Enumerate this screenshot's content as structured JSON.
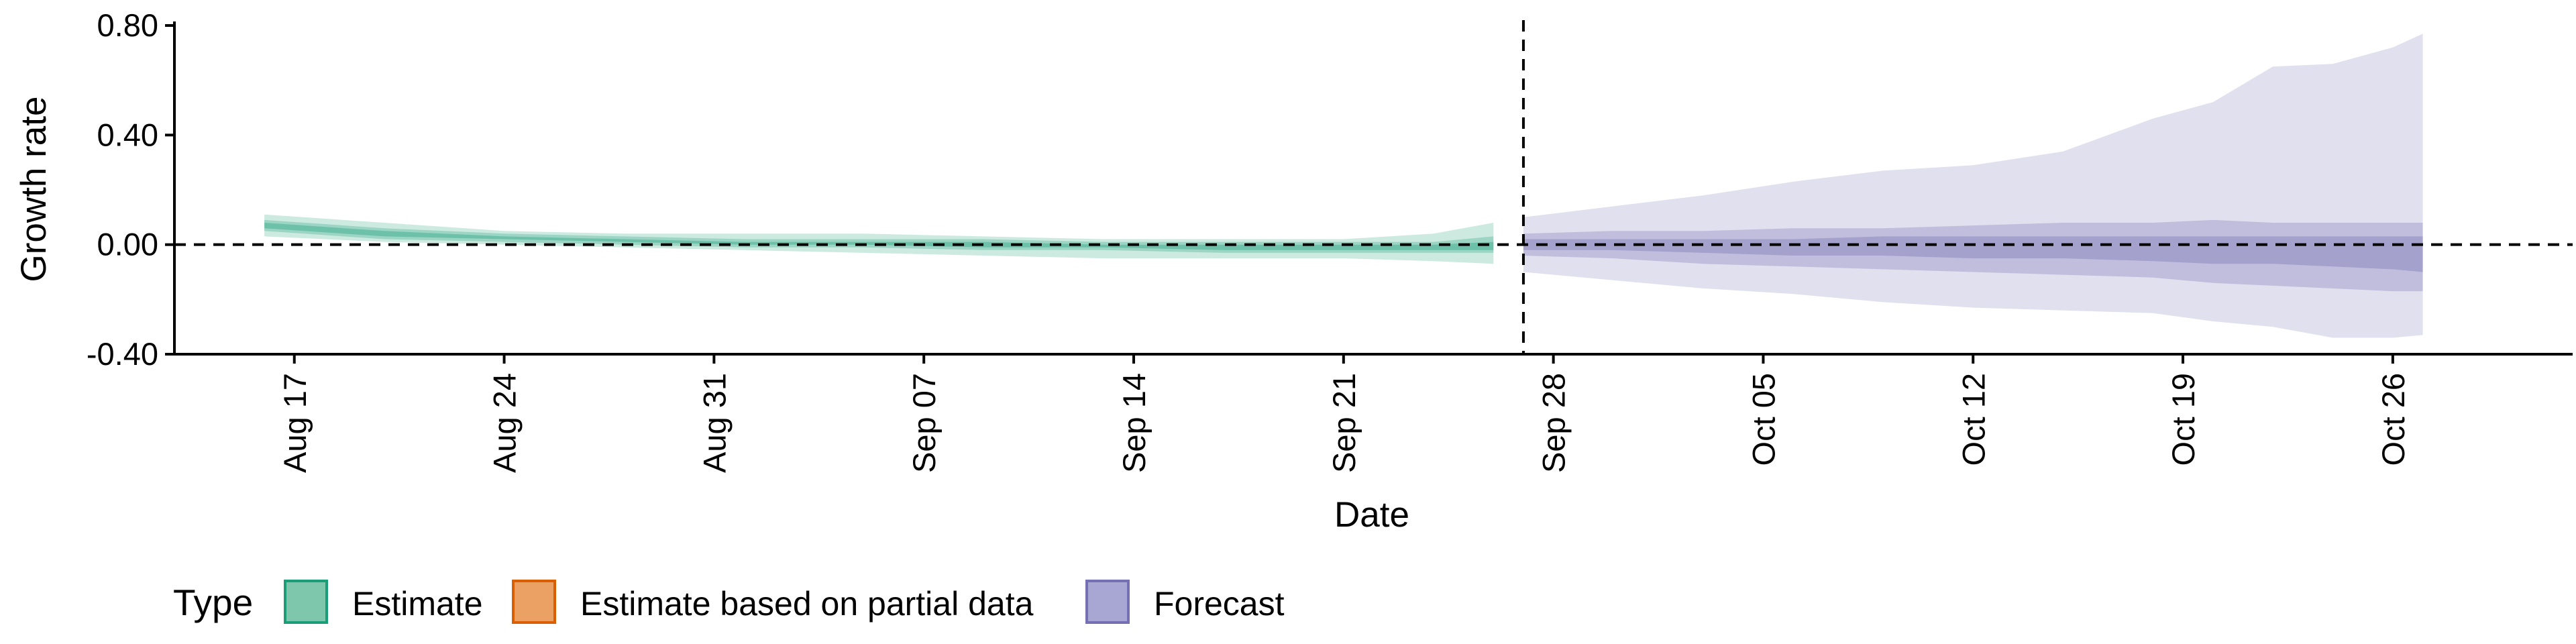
{
  "chart_data": {
    "type": "area",
    "title": "",
    "xlabel": "Date",
    "ylabel": "Growth rate",
    "ylim": [
      -0.4,
      0.8
    ],
    "xlim": [
      "2020-08-13",
      "2020-11-01"
    ],
    "y_ticks": [
      "-0.40",
      "0.00",
      "0.40",
      "0.80"
    ],
    "y_tick_values": [
      -0.4,
      0.0,
      0.4,
      0.8
    ],
    "x_ticks": [
      "Aug 17",
      "Aug 24",
      "Aug 31",
      "Sep 07",
      "Sep 14",
      "Sep 21",
      "Sep 28",
      "Oct 05",
      "Oct 12",
      "Oct 19",
      "Oct 26"
    ],
    "x_tick_dates": [
      "2020-08-17",
      "2020-08-24",
      "2020-08-31",
      "2020-09-07",
      "2020-09-14",
      "2020-09-21",
      "2020-09-28",
      "2020-10-05",
      "2020-10-12",
      "2020-10-19",
      "2020-10-26"
    ],
    "hline_y": 0.0,
    "vline_date": "2020-09-27",
    "grid": false,
    "legend": {
      "title": "Type",
      "position": "bottom-left",
      "entries": [
        {
          "label": "Estimate",
          "fill": "#7fc7ac",
          "border": "#1b9e77"
        },
        {
          "label": "Estimate based on partial data",
          "fill": "#eba064",
          "border": "#d95f02"
        },
        {
          "label": "Forecast",
          "fill": "#a8a6d3",
          "border": "#7570b3"
        }
      ]
    },
    "series": [
      {
        "name": "Estimate",
        "color": "#1b9e77",
        "x": [
          "2020-08-16",
          "2020-08-20",
          "2020-08-24",
          "2020-08-28",
          "2020-09-01",
          "2020-09-05",
          "2020-09-09",
          "2020-09-13",
          "2020-09-17",
          "2020-09-21",
          "2020-09-24",
          "2020-09-26"
        ],
        "bands": [
          {
            "level": "90%",
            "opacity": 0.22,
            "lower": [
              0.03,
              0.01,
              0.0,
              -0.01,
              -0.02,
              -0.03,
              -0.04,
              -0.05,
              -0.05,
              -0.05,
              -0.06,
              -0.07
            ],
            "upper": [
              0.11,
              0.08,
              0.05,
              0.04,
              0.04,
              0.04,
              0.03,
              0.02,
              0.02,
              0.02,
              0.04,
              0.08
            ]
          },
          {
            "level": "50%",
            "opacity": 0.28,
            "lower": [
              0.05,
              0.02,
              0.01,
              0.0,
              -0.01,
              -0.01,
              -0.02,
              -0.02,
              -0.03,
              -0.03,
              -0.03,
              -0.03
            ],
            "upper": [
              0.09,
              0.06,
              0.04,
              0.03,
              0.02,
              0.02,
              0.02,
              0.01,
              0.01,
              0.01,
              0.01,
              0.03
            ]
          },
          {
            "level": "20%",
            "opacity": 0.35,
            "lower": [
              0.06,
              0.03,
              0.02,
              0.01,
              0.0,
              0.0,
              -0.01,
              -0.01,
              -0.02,
              -0.02,
              -0.02,
              -0.02
            ],
            "upper": [
              0.08,
              0.05,
              0.03,
              0.02,
              0.01,
              0.01,
              0.01,
              0.0,
              0.0,
              0.0,
              0.0,
              0.01
            ]
          }
        ]
      },
      {
        "name": "Forecast",
        "color": "#7570b3",
        "x": [
          "2020-09-27",
          "2020-09-30",
          "2020-10-03",
          "2020-10-06",
          "2020-10-09",
          "2020-10-12",
          "2020-10-15",
          "2020-10-18",
          "2020-10-20",
          "2020-10-22",
          "2020-10-24",
          "2020-10-26",
          "2020-10-27"
        ],
        "bands": [
          {
            "level": "90%",
            "opacity": 0.22,
            "lower": [
              -0.1,
              -0.13,
              -0.16,
              -0.18,
              -0.21,
              -0.23,
              -0.24,
              -0.25,
              -0.28,
              -0.3,
              -0.34,
              -0.34,
              -0.33
            ],
            "upper": [
              0.1,
              0.14,
              0.18,
              0.23,
              0.27,
              0.29,
              0.34,
              0.46,
              0.52,
              0.65,
              0.66,
              0.72,
              0.77
            ]
          },
          {
            "level": "50%",
            "opacity": 0.3,
            "lower": [
              -0.04,
              -0.05,
              -0.07,
              -0.08,
              -0.09,
              -0.1,
              -0.11,
              -0.12,
              -0.14,
              -0.15,
              -0.16,
              -0.17,
              -0.17
            ],
            "upper": [
              0.04,
              0.05,
              0.05,
              0.06,
              0.06,
              0.07,
              0.08,
              0.08,
              0.09,
              0.08,
              0.08,
              0.08,
              0.08
            ]
          },
          {
            "level": "20%",
            "opacity": 0.38,
            "lower": [
              -0.02,
              -0.02,
              -0.03,
              -0.04,
              -0.04,
              -0.05,
              -0.05,
              -0.06,
              -0.07,
              -0.07,
              -0.08,
              -0.09,
              -0.1
            ],
            "upper": [
              0.02,
              0.02,
              0.02,
              0.02,
              0.03,
              0.03,
              0.03,
              0.03,
              0.03,
              0.03,
              0.03,
              0.03,
              0.03
            ]
          }
        ]
      }
    ]
  }
}
